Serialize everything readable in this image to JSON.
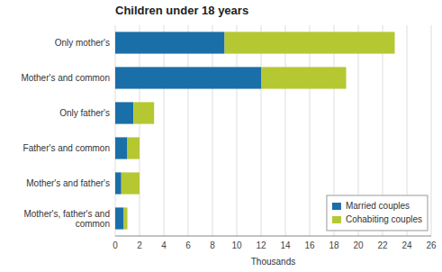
{
  "chart_data": {
    "type": "bar",
    "orientation": "horizontal",
    "stacked": true,
    "title": "Children under 18 years",
    "x_label": "Thousands",
    "categories": [
      "Mother's, father's and\ncommon",
      "Mother's and father's",
      "Father's and common",
      "Only father's",
      "Mother's and common",
      "Only mother's"
    ],
    "series": [
      {
        "name": "Married couples",
        "color": "#1a6fa8",
        "values": [
          0.7,
          0.5,
          1.0,
          1.5,
          12.0,
          9.0
        ]
      },
      {
        "name": "Cohabiting couples",
        "color": "#b5c832",
        "values": [
          0.3,
          1.5,
          1.0,
          1.7,
          7.0,
          14.0
        ]
      }
    ],
    "xlim": [
      0,
      26
    ],
    "xticks": [
      0,
      2,
      4,
      6,
      8,
      10,
      12,
      14,
      16,
      18,
      20,
      22,
      24,
      26
    ],
    "grid": true,
    "legend": "lower right"
  }
}
